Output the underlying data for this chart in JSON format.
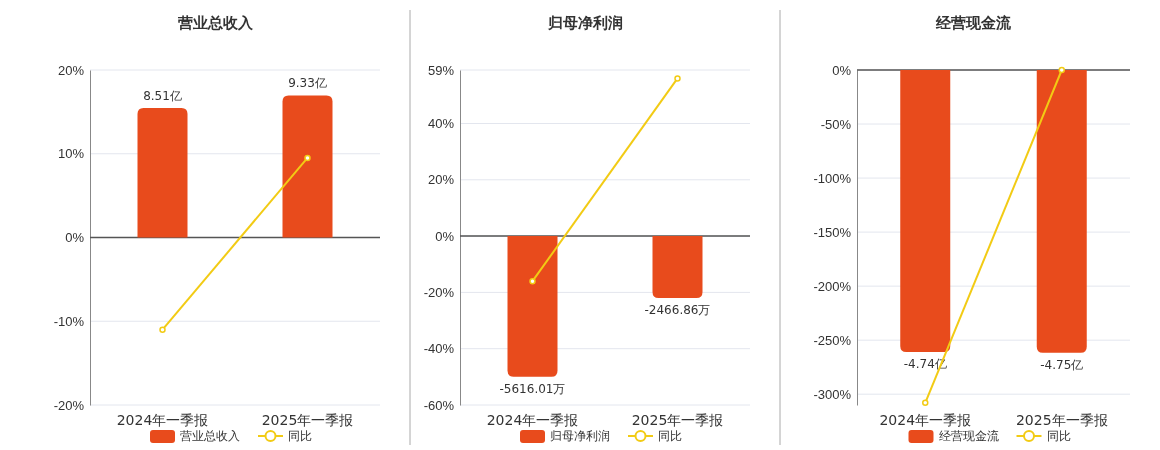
{
  "chart_data": [
    {
      "type": "bar",
      "title": "营业总收入",
      "categories": [
        "2024年一季报",
        "2025年一季报"
      ],
      "series": [
        {
          "name": "营业总收入",
          "color": "#e84b1c",
          "axis": "y2",
          "values": [
            8.51,
            9.33
          ],
          "value_labels": [
            "8.51亿",
            "9.33亿"
          ]
        },
        {
          "name": "同比",
          "type": "line",
          "color": "#f2cb14",
          "values": [
            -11,
            9.5
          ],
          "marker": "circle"
        }
      ],
      "ylim": [
        -20,
        20
      ],
      "yticks": [
        {
          "value": -20,
          "label": "-20%"
        },
        {
          "value": -10,
          "label": "-10%"
        },
        {
          "value": 0,
          "label": "0%"
        },
        {
          "value": 10,
          "label": "10%"
        },
        {
          "value": 20,
          "label": "20%"
        }
      ],
      "y2lim": [
        -11,
        11
      ],
      "ref_lines": [
        {
          "axis": "y",
          "value": 0,
          "color": "#555555"
        }
      ],
      "grid": "y",
      "legend": "bottom"
    },
    {
      "type": "bar",
      "title": "归母净利润",
      "categories": [
        "2024年一季报",
        "2025年一季报"
      ],
      "series": [
        {
          "name": "归母净利润",
          "color": "#e84b1c",
          "axis": "y2",
          "values": [
            -5616.01,
            -2466.86
          ],
          "value_labels": [
            "-5616.01万",
            "-2466.86万"
          ]
        },
        {
          "name": "同比",
          "type": "line",
          "color": "#f2cb14",
          "values": [
            -16,
            56
          ],
          "marker": "circle"
        }
      ],
      "ylim": [
        -60,
        59
      ],
      "yticks": [
        {
          "value": -60,
          "label": "-60%"
        },
        {
          "value": -40,
          "label": "-40%"
        },
        {
          "value": -20,
          "label": "-20%"
        },
        {
          "value": 0,
          "label": "0%"
        },
        {
          "value": 20,
          "label": "20%"
        },
        {
          "value": 40,
          "label": "40%"
        },
        {
          "value": 59,
          "label": "59%"
        }
      ],
      "y2lim": [
        -6740,
        6630
      ],
      "ref_lines": [
        {
          "axis": "y",
          "value": 0,
          "color": "#555555"
        }
      ],
      "grid": "y",
      "legend": "bottom"
    },
    {
      "type": "bar",
      "title": "经营现金流",
      "categories": [
        "2024年一季报",
        "2025年一季报"
      ],
      "series": [
        {
          "name": "经营现金流",
          "color": "#e84b1c",
          "axis": "y2",
          "values": [
            -4.74,
            -4.75
          ],
          "value_labels": [
            "-4.74亿",
            "-4.75亿"
          ]
        },
        {
          "name": "同比",
          "type": "line",
          "color": "#f2cb14",
          "values": [
            -308,
            0
          ],
          "marker": "circle"
        }
      ],
      "ylim": [
        -310,
        0
      ],
      "yticks": [
        {
          "value": -300,
          "label": "-300%"
        },
        {
          "value": -250,
          "label": "-250%"
        },
        {
          "value": -200,
          "label": "-200%"
        },
        {
          "value": -150,
          "label": "-150%"
        },
        {
          "value": -100,
          "label": "-100%"
        },
        {
          "value": -50,
          "label": "-50%"
        },
        {
          "value": 0,
          "label": "0%"
        }
      ],
      "y2lim": [
        -5.63,
        0
      ],
      "ref_lines": [
        {
          "axis": "y",
          "value": 0,
          "color": "#555555"
        }
      ],
      "grid": "y",
      "legend": "bottom"
    }
  ]
}
